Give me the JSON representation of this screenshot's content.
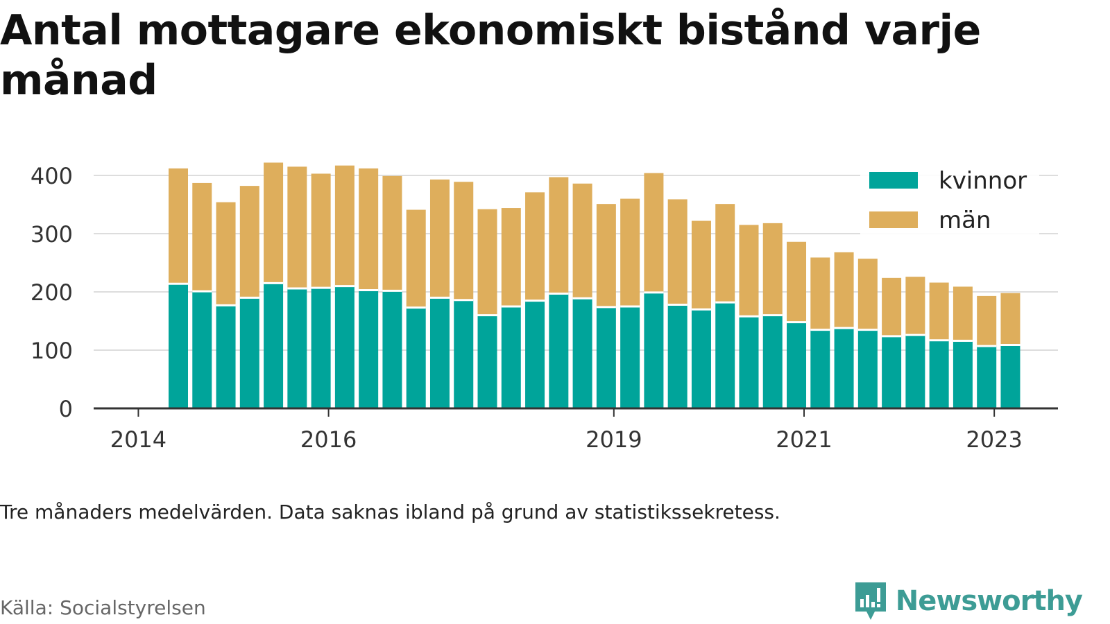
{
  "header": {
    "title": "Antal mottagare ekonomiskt bistånd varje månad"
  },
  "footer": {
    "caption": "Tre månaders medelvärden. Data saknas ibland på grund av statistikssekretess.",
    "source": "Källa: Socialstyrelsen",
    "brand": "Newsworthy",
    "brand_icon": "newsworthy-logo-icon",
    "brand_color": "#3d9c95"
  },
  "chart_data": {
    "type": "bar",
    "stacked": true,
    "x": [
      2014.42,
      2014.67,
      2014.92,
      2015.17,
      2015.42,
      2015.67,
      2015.92,
      2016.17,
      2016.42,
      2016.67,
      2016.92,
      2017.17,
      2017.42,
      2017.67,
      2017.92,
      2018.17,
      2018.42,
      2018.67,
      2018.92,
      2019.17,
      2019.42,
      2019.67,
      2019.92,
      2020.17,
      2020.42,
      2020.67,
      2020.92,
      2021.17,
      2021.42,
      2021.67,
      2021.92,
      2022.17,
      2022.42,
      2022.67,
      2022.92,
      2023.17
    ],
    "series": [
      {
        "name": "kvinnor",
        "color": "#00a49a",
        "values": [
          214,
          201,
          177,
          190,
          215,
          206,
          207,
          210,
          203,
          202,
          173,
          190,
          186,
          160,
          175,
          185,
          197,
          189,
          174,
          175,
          199,
          178,
          170,
          182,
          158,
          160,
          148,
          135,
          138,
          135,
          124,
          126,
          117,
          116,
          107,
          109
        ]
      },
      {
        "name": "män",
        "color": "#deae5c",
        "values": [
          198,
          186,
          177,
          192,
          207,
          209,
          196,
          207,
          209,
          197,
          168,
          203,
          203,
          182,
          169,
          186,
          200,
          197,
          177,
          185,
          205,
          181,
          152,
          169,
          157,
          158,
          138,
          124,
          130,
          122,
          100,
          100,
          99,
          93,
          86,
          89
        ]
      }
    ],
    "xticks": [
      2014,
      2016,
      2019,
      2021,
      2023
    ],
    "xtick_labels": [
      "2014",
      "2016",
      "2019",
      "2021",
      "2023"
    ],
    "xlim": [
      2013.53,
      2023.67
    ],
    "yticks": [
      0,
      100,
      200,
      300,
      400
    ],
    "ylim": [
      0,
      420
    ],
    "grid": "horizontal",
    "legend_position": "top-right",
    "xlabel": "",
    "ylabel": ""
  }
}
